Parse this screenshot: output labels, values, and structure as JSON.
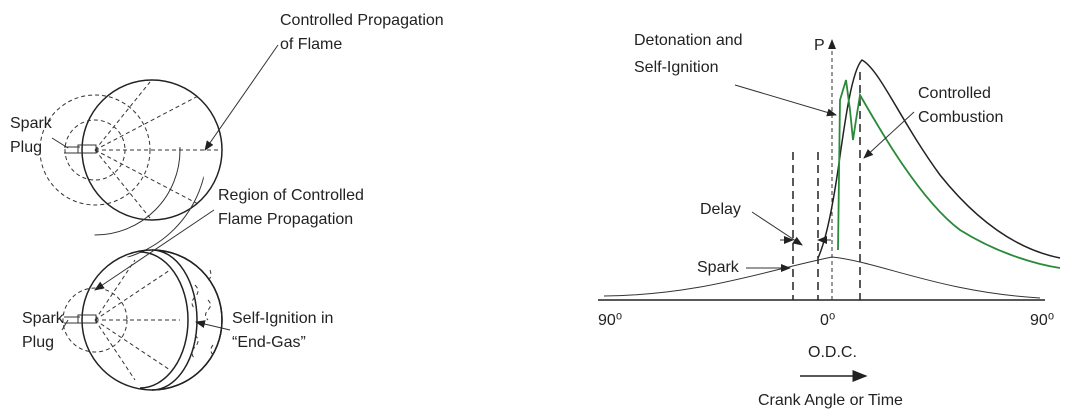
{
  "left": {
    "top_label": [
      "Controlled Propagation",
      "of Flame"
    ],
    "top_spark_plug": [
      "Spark",
      "Plug"
    ],
    "middle_label": [
      "Region of Controlled",
      "Flame Propagation"
    ],
    "bottom_spark_plug": [
      "Spark",
      "Plug"
    ],
    "bottom_label": [
      "Self-Ignition in",
      "“End-Gas”"
    ]
  },
  "right": {
    "detonation_label": [
      "Detonation and",
      "Self-Ignition"
    ],
    "axis_label_p": "P",
    "combustion_label": [
      "Controlled",
      "Combustion"
    ],
    "delay_label": "Delay",
    "spark_label": "Spark",
    "x_left": "90⁰",
    "x_center": "0⁰",
    "x_right": "90⁰",
    "odc_label": "O.D.C.",
    "x_axis_label": "Crank Angle or Time"
  }
}
